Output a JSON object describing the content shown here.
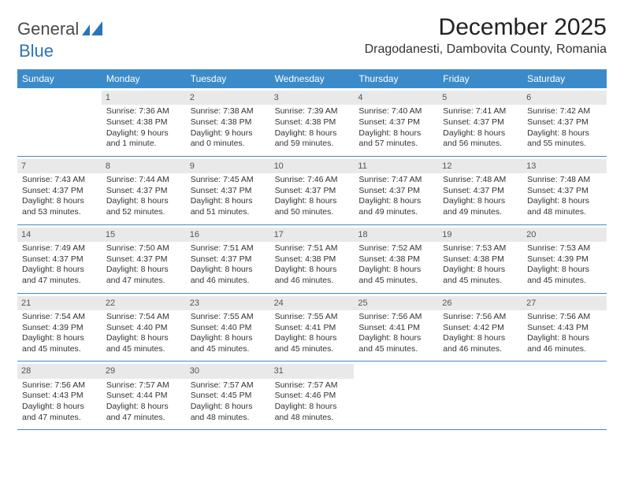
{
  "logo": {
    "general": "General",
    "blue": "Blue"
  },
  "title": {
    "month": "December 2025",
    "location": "Dragodanesti, Dambovita County, Romania"
  },
  "colors": {
    "header_bg": "#3b8bca",
    "header_text": "#ffffff",
    "daynum_bg": "#e9e9e9",
    "week_border": "#3b8bca"
  },
  "day_names": [
    "Sunday",
    "Monday",
    "Tuesday",
    "Wednesday",
    "Thursday",
    "Friday",
    "Saturday"
  ],
  "weeks": [
    [
      {
        "n": "",
        "sunrise": "",
        "sunset": "",
        "daylight": ""
      },
      {
        "n": "1",
        "sunrise": "7:36 AM",
        "sunset": "4:38 PM",
        "daylight": "9 hours and 1 minute."
      },
      {
        "n": "2",
        "sunrise": "7:38 AM",
        "sunset": "4:38 PM",
        "daylight": "9 hours and 0 minutes."
      },
      {
        "n": "3",
        "sunrise": "7:39 AM",
        "sunset": "4:38 PM",
        "daylight": "8 hours and 59 minutes."
      },
      {
        "n": "4",
        "sunrise": "7:40 AM",
        "sunset": "4:37 PM",
        "daylight": "8 hours and 57 minutes."
      },
      {
        "n": "5",
        "sunrise": "7:41 AM",
        "sunset": "4:37 PM",
        "daylight": "8 hours and 56 minutes."
      },
      {
        "n": "6",
        "sunrise": "7:42 AM",
        "sunset": "4:37 PM",
        "daylight": "8 hours and 55 minutes."
      }
    ],
    [
      {
        "n": "7",
        "sunrise": "7:43 AM",
        "sunset": "4:37 PM",
        "daylight": "8 hours and 53 minutes."
      },
      {
        "n": "8",
        "sunrise": "7:44 AM",
        "sunset": "4:37 PM",
        "daylight": "8 hours and 52 minutes."
      },
      {
        "n": "9",
        "sunrise": "7:45 AM",
        "sunset": "4:37 PM",
        "daylight": "8 hours and 51 minutes."
      },
      {
        "n": "10",
        "sunrise": "7:46 AM",
        "sunset": "4:37 PM",
        "daylight": "8 hours and 50 minutes."
      },
      {
        "n": "11",
        "sunrise": "7:47 AM",
        "sunset": "4:37 PM",
        "daylight": "8 hours and 49 minutes."
      },
      {
        "n": "12",
        "sunrise": "7:48 AM",
        "sunset": "4:37 PM",
        "daylight": "8 hours and 49 minutes."
      },
      {
        "n": "13",
        "sunrise": "7:48 AM",
        "sunset": "4:37 PM",
        "daylight": "8 hours and 48 minutes."
      }
    ],
    [
      {
        "n": "14",
        "sunrise": "7:49 AM",
        "sunset": "4:37 PM",
        "daylight": "8 hours and 47 minutes."
      },
      {
        "n": "15",
        "sunrise": "7:50 AM",
        "sunset": "4:37 PM",
        "daylight": "8 hours and 47 minutes."
      },
      {
        "n": "16",
        "sunrise": "7:51 AM",
        "sunset": "4:37 PM",
        "daylight": "8 hours and 46 minutes."
      },
      {
        "n": "17",
        "sunrise": "7:51 AM",
        "sunset": "4:38 PM",
        "daylight": "8 hours and 46 minutes."
      },
      {
        "n": "18",
        "sunrise": "7:52 AM",
        "sunset": "4:38 PM",
        "daylight": "8 hours and 45 minutes."
      },
      {
        "n": "19",
        "sunrise": "7:53 AM",
        "sunset": "4:38 PM",
        "daylight": "8 hours and 45 minutes."
      },
      {
        "n": "20",
        "sunrise": "7:53 AM",
        "sunset": "4:39 PM",
        "daylight": "8 hours and 45 minutes."
      }
    ],
    [
      {
        "n": "21",
        "sunrise": "7:54 AM",
        "sunset": "4:39 PM",
        "daylight": "8 hours and 45 minutes."
      },
      {
        "n": "22",
        "sunrise": "7:54 AM",
        "sunset": "4:40 PM",
        "daylight": "8 hours and 45 minutes."
      },
      {
        "n": "23",
        "sunrise": "7:55 AM",
        "sunset": "4:40 PM",
        "daylight": "8 hours and 45 minutes."
      },
      {
        "n": "24",
        "sunrise": "7:55 AM",
        "sunset": "4:41 PM",
        "daylight": "8 hours and 45 minutes."
      },
      {
        "n": "25",
        "sunrise": "7:56 AM",
        "sunset": "4:41 PM",
        "daylight": "8 hours and 45 minutes."
      },
      {
        "n": "26",
        "sunrise": "7:56 AM",
        "sunset": "4:42 PM",
        "daylight": "8 hours and 46 minutes."
      },
      {
        "n": "27",
        "sunrise": "7:56 AM",
        "sunset": "4:43 PM",
        "daylight": "8 hours and 46 minutes."
      }
    ],
    [
      {
        "n": "28",
        "sunrise": "7:56 AM",
        "sunset": "4:43 PM",
        "daylight": "8 hours and 47 minutes."
      },
      {
        "n": "29",
        "sunrise": "7:57 AM",
        "sunset": "4:44 PM",
        "daylight": "8 hours and 47 minutes."
      },
      {
        "n": "30",
        "sunrise": "7:57 AM",
        "sunset": "4:45 PM",
        "daylight": "8 hours and 48 minutes."
      },
      {
        "n": "31",
        "sunrise": "7:57 AM",
        "sunset": "4:46 PM",
        "daylight": "8 hours and 48 minutes."
      },
      {
        "n": "",
        "sunrise": "",
        "sunset": "",
        "daylight": ""
      },
      {
        "n": "",
        "sunrise": "",
        "sunset": "",
        "daylight": ""
      },
      {
        "n": "",
        "sunrise": "",
        "sunset": "",
        "daylight": ""
      }
    ]
  ],
  "labels": {
    "sunrise": "Sunrise:",
    "sunset": "Sunset:",
    "daylight": "Daylight:"
  }
}
